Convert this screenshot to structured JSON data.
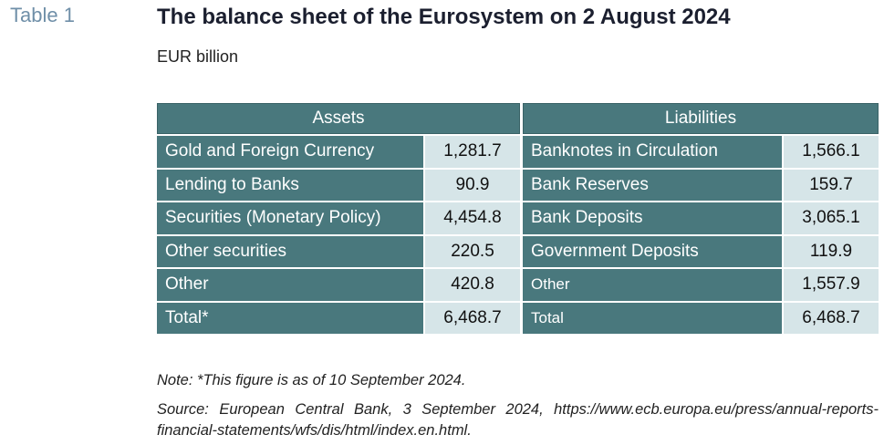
{
  "table_label": "Table 1",
  "title": "The balance sheet of the Eurosystem on 2 August 2024",
  "unit": "EUR billion",
  "assets": {
    "header": "Assets",
    "rows": [
      {
        "label": "Gold and Foreign Currency",
        "value": "1,281.7"
      },
      {
        "label": "Lending to Banks",
        "value": "90.9"
      },
      {
        "label": "Securities (Monetary Policy)",
        "value": "4,454.8"
      },
      {
        "label": "Other securities",
        "value": "220.5"
      },
      {
        "label": "Other",
        "value": "420.8"
      },
      {
        "label": "Total*",
        "value": "6,468.7"
      }
    ]
  },
  "liabilities": {
    "header": "Liabilities",
    "rows": [
      {
        "label": "Banknotes in Circulation",
        "value": "1,566.1"
      },
      {
        "label": "Bank Reserves",
        "value": "159.7"
      },
      {
        "label": "Bank Deposits",
        "value": "3,065.1"
      },
      {
        "label": "Government Deposits",
        "value": "119.9"
      },
      {
        "label": "Other",
        "value": "1,557.9"
      },
      {
        "label": "Total",
        "value": "6,468.7"
      }
    ]
  },
  "note": "Note: *This figure is as of 10 September 2024.",
  "source": "Source: European Central Bank, 3 September 2024, https://www.ecb.europa.eu/press/annual-reports-financial-statements/wfs/dis/html/index.en.html."
}
